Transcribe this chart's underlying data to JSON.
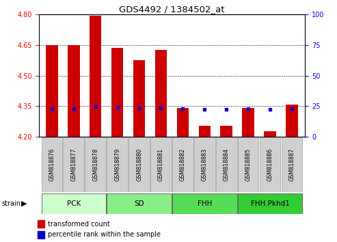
{
  "title": "GDS4492 / 1384502_at",
  "samples": [
    "GSM818876",
    "GSM818877",
    "GSM818878",
    "GSM818879",
    "GSM818880",
    "GSM818881",
    "GSM818882",
    "GSM818883",
    "GSM818884",
    "GSM818885",
    "GSM818886",
    "GSM818887"
  ],
  "red_values": [
    4.65,
    4.65,
    4.795,
    4.638,
    4.575,
    4.627,
    4.34,
    4.253,
    4.253,
    4.34,
    4.228,
    4.358
  ],
  "blue_values": [
    4.337,
    4.336,
    4.349,
    4.344,
    4.341,
    4.341,
    4.338,
    4.333,
    4.334,
    4.337,
    4.333,
    4.336
  ],
  "ylim_left": [
    4.2,
    4.8
  ],
  "ylim_right": [
    0,
    100
  ],
  "y_ticks_left": [
    4.2,
    4.35,
    4.5,
    4.65,
    4.8
  ],
  "y_ticks_right": [
    0,
    25,
    50,
    75,
    100
  ],
  "groups": [
    {
      "label": "PCK",
      "start": 0,
      "end": 3,
      "color": "#ccffcc"
    },
    {
      "label": "SD",
      "start": 3,
      "end": 6,
      "color": "#88ee88"
    },
    {
      "label": "FHH",
      "start": 6,
      "end": 9,
      "color": "#55dd55"
    },
    {
      "label": "FHH.Pkhd1",
      "start": 9,
      "end": 12,
      "color": "#33cc33"
    }
  ],
  "bar_width": 0.55,
  "red_color": "#cc0000",
  "blue_color": "#0000cc",
  "label_box_color": "#d0d0d0",
  "label_box_edge": "#aaaaaa",
  "fig_bg": "#ffffff"
}
